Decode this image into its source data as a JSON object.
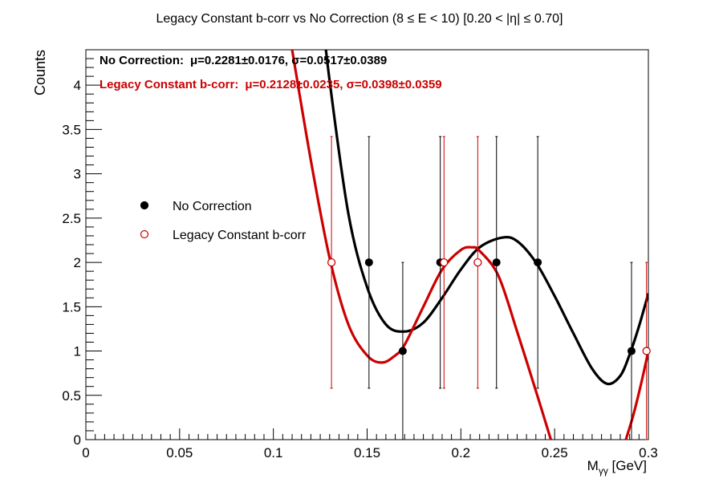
{
  "chart_data": {
    "type": "scatter",
    "title": "Legacy Constant b-corr vs No Correction   (8 ≤ E < 10)   [0.20 < |η| ≤ 0.70]",
    "xlabel": "M",
    "xlabel_sub": "γγ",
    "xlabel_unit": " [GeV]",
    "ylabel": "Counts",
    "xlim": [
      0,
      0.3
    ],
    "ylim": [
      0,
      4.4
    ],
    "x_ticks": [
      {
        "v": 0,
        "label": "0"
      },
      {
        "v": 0.05,
        "label": "0.05"
      },
      {
        "v": 0.1,
        "label": "0.1"
      },
      {
        "v": 0.15,
        "label": "0.15"
      },
      {
        "v": 0.2,
        "label": "0.2"
      },
      {
        "v": 0.25,
        "label": "0.25"
      },
      {
        "v": 0.3,
        "label": "0.3"
      }
    ],
    "y_ticks": [
      {
        "v": 0,
        "label": "0"
      },
      {
        "v": 0.5,
        "label": "0.5"
      },
      {
        "v": 1,
        "label": "1"
      },
      {
        "v": 1.5,
        "label": "1.5"
      },
      {
        "v": 2,
        "label": "2"
      },
      {
        "v": 2.5,
        "label": "2.5"
      },
      {
        "v": 3,
        "label": "3"
      },
      {
        "v": 3.5,
        "label": "3.5"
      },
      {
        "v": 4,
        "label": "4"
      }
    ],
    "legend_position": "center-left",
    "grid": false,
    "series": [
      {
        "name": "No Correction",
        "color": "#000000",
        "marker": "filled-circle",
        "points": [
          {
            "x": 0.151,
            "y": 2,
            "err_low": 1.42,
            "err_high": 1.42
          },
          {
            "x": 0.169,
            "y": 1,
            "err_low": 1.0,
            "err_high": 1.0
          },
          {
            "x": 0.189,
            "y": 2,
            "err_low": 1.42,
            "err_high": 1.42
          },
          {
            "x": 0.219,
            "y": 2,
            "err_low": 1.42,
            "err_high": 1.42
          },
          {
            "x": 0.241,
            "y": 2,
            "err_low": 1.42,
            "err_high": 1.42
          },
          {
            "x": 0.291,
            "y": 1,
            "err_low": 1.0,
            "err_high": 1.0
          }
        ],
        "fit": {
          "x": [
            0.125,
            0.13,
            0.14,
            0.15,
            0.16,
            0.17,
            0.18,
            0.19,
            0.2,
            0.21,
            0.222,
            0.23,
            0.24,
            0.25,
            0.26,
            0.27,
            0.278,
            0.285,
            0.29,
            0.295,
            0.3
          ],
          "y": [
            5.0,
            4.05,
            2.55,
            1.72,
            1.3,
            1.22,
            1.32,
            1.6,
            1.92,
            2.17,
            2.28,
            2.24,
            2.0,
            1.62,
            1.2,
            0.8,
            0.63,
            0.72,
            0.96,
            1.28,
            1.65
          ]
        },
        "fit_label": "No Correction:",
        "fit_params": "μ=0.2281±0.0176,  σ=0.0517±0.0389"
      },
      {
        "name": "Legacy Constant b-corr",
        "color": "#cc0000",
        "marker": "open-circle",
        "points": [
          {
            "x": 0.131,
            "y": 2,
            "err_low": 1.42,
            "err_high": 1.42
          },
          {
            "x": 0.191,
            "y": 2,
            "err_low": 1.42,
            "err_high": 1.42
          },
          {
            "x": 0.209,
            "y": 2,
            "err_low": 1.42,
            "err_high": 1.42
          },
          {
            "x": 0.299,
            "y": 1,
            "err_low": 1.0,
            "err_high": 1.0
          }
        ],
        "fit": {
          "x": [
            0.106,
            0.11,
            0.12,
            0.13,
            0.14,
            0.15,
            0.158,
            0.165,
            0.17,
            0.18,
            0.19,
            0.2,
            0.206,
            0.21,
            0.22,
            0.23,
            0.24,
            0.248
          ],
          "y": [
            4.9,
            4.4,
            3.15,
            2.05,
            1.3,
            0.95,
            0.87,
            0.95,
            1.07,
            1.5,
            1.92,
            2.14,
            2.17,
            2.13,
            1.85,
            1.22,
            0.55,
            0.0
          ]
        },
        "fit2": {
          "x": [
            0.288,
            0.292,
            0.296,
            0.3
          ],
          "y": [
            0.0,
            0.28,
            0.62,
            1.0
          ]
        },
        "fit_label": "Legacy Constant b-corr:",
        "fit_params": "μ=0.2128±0.0235,  σ=0.0398±0.0359"
      }
    ]
  }
}
